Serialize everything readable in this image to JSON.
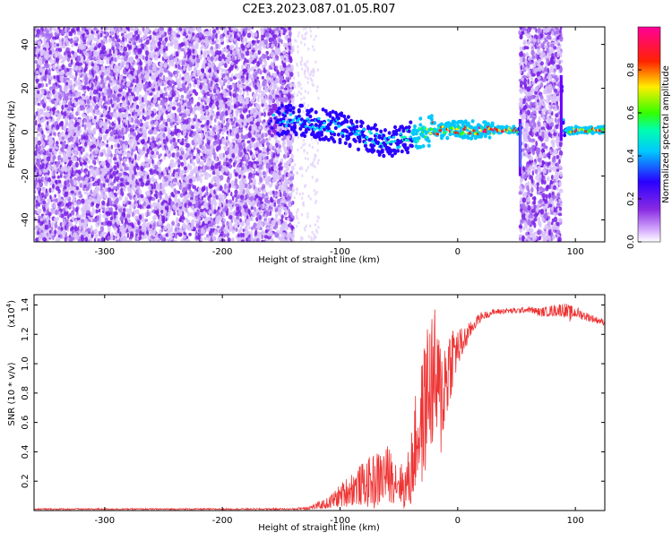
{
  "title": "C2E3.2023.087.01.05.R07",
  "chart_data": [
    {
      "type": "heatmap",
      "title": "C2E3.2023.087.01.05.R07",
      "xlabel": "Height of straight line (km)",
      "ylabel": "Frequency (Hz)",
      "xlim": [
        -360,
        125
      ],
      "ylim": [
        -50,
        48
      ],
      "xticks": [
        -300,
        -200,
        -100,
        0,
        100
      ],
      "yticks": [
        -40,
        -20,
        0,
        20,
        40
      ],
      "colorbar": {
        "label": "Normalized spectral amplitude",
        "range": [
          0.0,
          1.0
        ],
        "ticks": [
          0.0,
          0.2,
          0.4,
          0.6,
          0.8
        ],
        "colormap": "rainbow (white→purple→blue→cyan→green→yellow→red→magenta)"
      },
      "noise_regions_km": [
        [
          -360,
          -140
        ],
        [
          53,
          88
        ]
      ],
      "signal_trace": {
        "x": [
          -160,
          -140,
          -120,
          -100,
          -80,
          -60,
          -50,
          -40,
          -30,
          -20,
          -10,
          0,
          20,
          40,
          50,
          53,
          58,
          88,
          90,
          100,
          125
        ],
        "y": [
          5,
          6,
          4,
          2,
          -2,
          -5,
          -4,
          -2,
          0,
          1,
          1,
          1,
          1,
          1,
          1,
          0,
          -18,
          25,
          0,
          1,
          1
        ],
        "peak_amplitude": [
          0.3,
          0.4,
          0.45,
          0.4,
          0.45,
          0.5,
          0.55,
          0.6,
          0.7,
          0.8,
          0.85,
          0.85,
          0.9,
          0.9,
          0.85,
          0.5,
          0.3,
          0.3,
          0.5,
          0.9,
          0.9
        ]
      },
      "grid": false
    },
    {
      "type": "line",
      "title": "",
      "xlabel": "Height of straight line (km)",
      "ylabel": "SNR (10 * v/v)",
      "y_scale_label": "(x10",
      "y_scale_exp": "4",
      "y_scale_close": ")",
      "xlim": [
        -360,
        125
      ],
      "ylim": [
        0.0,
        1.47
      ],
      "xticks": [
        -300,
        -200,
        -100,
        0,
        100
      ],
      "yticks": [
        0.2,
        0.4,
        0.6,
        0.8,
        1.0,
        1.2,
        1.4
      ],
      "series": [
        {
          "color": "#ee3333",
          "x": [
            -360,
            -300,
            -200,
            -140,
            -125,
            -110,
            -100,
            -90,
            -80,
            -70,
            -60,
            -50,
            -45,
            -40,
            -35,
            -30,
            -25,
            -20,
            -15,
            -10,
            -5,
            0,
            5,
            10,
            15,
            20,
            30,
            40,
            50,
            60,
            70,
            80,
            90,
            95,
            100,
            110,
            125
          ],
          "y": [
            0.01,
            0.01,
            0.01,
            0.01,
            0.02,
            0.05,
            0.1,
            0.15,
            0.18,
            0.2,
            0.25,
            0.2,
            0.15,
            0.25,
            0.5,
            0.6,
            0.85,
            0.9,
            0.75,
            0.9,
            1.05,
            1.1,
            1.15,
            1.22,
            1.28,
            1.32,
            1.35,
            1.36,
            1.36,
            1.37,
            1.35,
            1.36,
            1.37,
            1.34,
            1.35,
            1.32,
            1.28
          ],
          "noise": [
            0.005,
            0.005,
            0.005,
            0.006,
            0.015,
            0.04,
            0.08,
            0.12,
            0.15,
            0.2,
            0.2,
            0.15,
            0.15,
            0.25,
            0.35,
            0.45,
            0.5,
            0.5,
            0.45,
            0.35,
            0.25,
            0.15,
            0.1,
            0.06,
            0.04,
            0.03,
            0.02,
            0.02,
            0.02,
            0.02,
            0.03,
            0.04,
            0.05,
            0.06,
            0.04,
            0.03,
            0.02
          ]
        }
      ],
      "grid": false
    }
  ]
}
